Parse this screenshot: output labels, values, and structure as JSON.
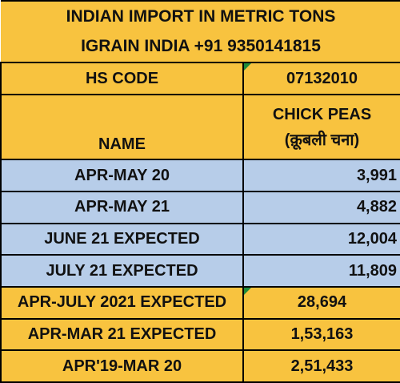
{
  "header": {
    "title_lines": [
      "INDIAN IMPORT IN METRIC TONS",
      "IGRAIN INDIA +91 9350141815"
    ]
  },
  "table": {
    "hs_code": {
      "label": "HS CODE",
      "value": "07132010"
    },
    "name_header": "NAME",
    "product_header": [
      "CHICK PEAS",
      "(क़ूबली चना)"
    ],
    "rows": [
      [
        "APR-MAY 20",
        "3,991"
      ],
      [
        "APR-MAY 21",
        "4,882"
      ],
      [
        "JUNE 21 EXPECTED",
        "12,004"
      ],
      [
        "JULY 21 EXPECTED",
        "11,809"
      ],
      [
        "APR-JULY 2021 EXPECTED",
        "28,694"
      ],
      [
        "APR-MAR 21 EXPECTED",
        "1,53,163"
      ],
      [
        "APR'19-MAR 20",
        "2,51,433"
      ]
    ]
  }
}
